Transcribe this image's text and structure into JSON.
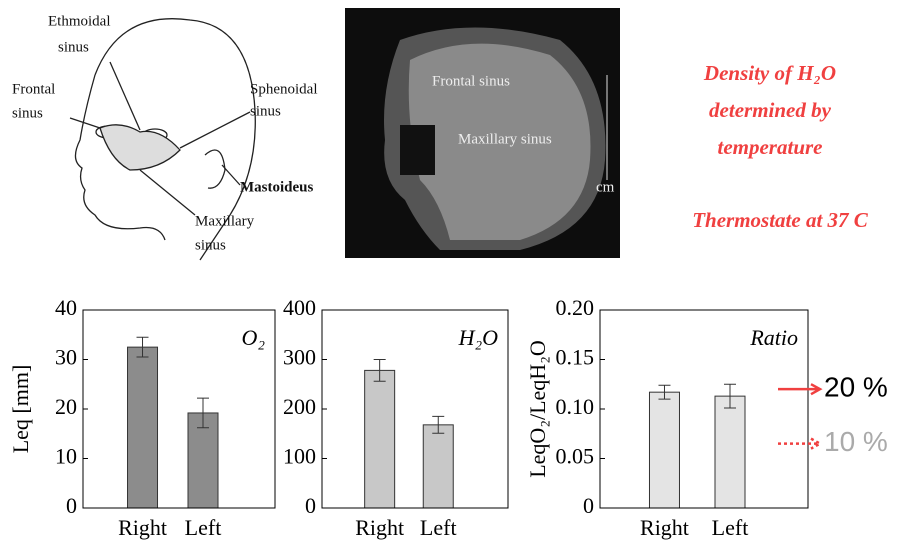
{
  "illustration": {
    "labels": [
      {
        "lines": [
          "Ethmoidal",
          "sinus"
        ]
      },
      {
        "lines": [
          "Frontal",
          "sinus"
        ]
      },
      {
        "lines": [
          "Sphenoidal",
          "sinus"
        ]
      },
      {
        "lines": [
          "Mastoideus"
        ]
      },
      {
        "lines": [
          "Maxillary",
          "sinus"
        ]
      }
    ]
  },
  "mri": {
    "labels": [
      "Frontal sinus",
      "Maxillary sinus",
      "cm"
    ]
  },
  "notes": {
    "density": [
      "Density of H₂O",
      "determined by",
      "temperature"
    ],
    "thermostat": "Thermostate at 37 C"
  },
  "chart_data": [
    {
      "type": "bar",
      "legend": "O₂",
      "ylabel": "Leq [mm]",
      "categories": [
        "Right",
        "Left"
      ],
      "values": [
        32.5,
        19.2
      ],
      "errors": [
        2,
        3
      ],
      "color": "#8c8c8c",
      "ylim": [
        0,
        40
      ],
      "yticks": [
        0,
        10,
        20,
        30,
        40
      ]
    },
    {
      "type": "bar",
      "legend": "H₂O",
      "categories": [
        "Right",
        "Left"
      ],
      "values": [
        278,
        168
      ],
      "errors": [
        22,
        17
      ],
      "color": "#c8c8c8",
      "ylim": [
        0,
        400
      ],
      "yticks": [
        0,
        100,
        200,
        300,
        400
      ]
    },
    {
      "type": "bar",
      "legend": "Ratio",
      "ylabel": "LeqO₂/LeqH₂O",
      "categories": [
        "Right",
        "Left"
      ],
      "values": [
        0.117,
        0.113
      ],
      "errors": [
        0.007,
        0.012
      ],
      "color": "#e4e4e4",
      "ylim": [
        0,
        0.2
      ],
      "yticks": [
        0,
        0.05,
        {
          "value": 0.1,
          "label": "0.10"
        },
        {
          "value": 0.15,
          "label": "0.15"
        },
        {
          "value": 0.2,
          "label": "0.20"
        }
      ],
      "annotations": [
        "20 %",
        "10 %"
      ]
    }
  ]
}
